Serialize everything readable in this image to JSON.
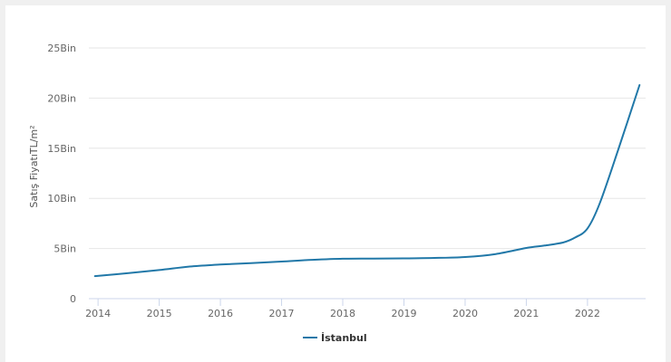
{
  "chart_data": {
    "type": "line",
    "title": "",
    "xlabel": "",
    "ylabel": "Satış FiyatıTL/m²",
    "xlim": [
      2013.85,
      2022.95
    ],
    "ylim": [
      0,
      25000
    ],
    "x_ticks": [
      {
        "value": 2014,
        "label": "2014"
      },
      {
        "value": 2015,
        "label": "2015"
      },
      {
        "value": 2016,
        "label": "2016"
      },
      {
        "value": 2017,
        "label": "2017"
      },
      {
        "value": 2018,
        "label": "2018"
      },
      {
        "value": 2019,
        "label": "2019"
      },
      {
        "value": 2020,
        "label": "2020"
      },
      {
        "value": 2021,
        "label": "2021"
      },
      {
        "value": 2022,
        "label": "2022"
      }
    ],
    "y_ticks": [
      {
        "value": 0,
        "label": "0"
      },
      {
        "value": 5000,
        "label": "5Bin"
      },
      {
        "value": 10000,
        "label": "10Bin"
      },
      {
        "value": 15000,
        "label": "15Bin"
      },
      {
        "value": 20000,
        "label": "20Bin"
      },
      {
        "value": 25000,
        "label": "25Bin"
      }
    ],
    "grid": true,
    "legend": "bottom-center",
    "series": [
      {
        "name": "İstanbul",
        "color": "#2178a8",
        "x": [
          2013.95,
          2014.5,
          2015.0,
          2015.5,
          2016.0,
          2016.5,
          2017.0,
          2017.5,
          2018.0,
          2018.5,
          2019.0,
          2019.5,
          2020.0,
          2020.5,
          2021.0,
          2021.3,
          2021.6,
          2021.8,
          2022.0,
          2022.2,
          2022.5,
          2022.85
        ],
        "y": [
          2250,
          2550,
          2850,
          3200,
          3400,
          3550,
          3700,
          3870,
          3980,
          4000,
          4020,
          4060,
          4150,
          4450,
          5050,
          5300,
          5600,
          6100,
          7000,
          9500,
          14800,
          21300
        ]
      }
    ]
  }
}
